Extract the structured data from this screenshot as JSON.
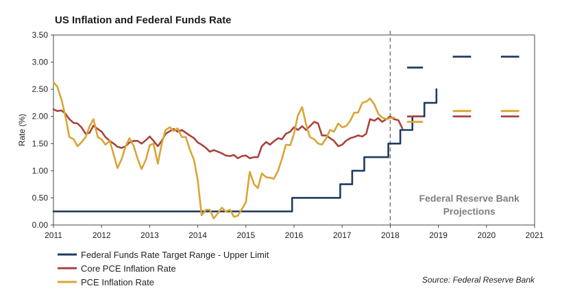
{
  "chart_data": {
    "type": "line",
    "title": "US Inflation and Federal Funds Rate",
    "ylabel": "Rate (%)",
    "xlabel": "",
    "xlim": [
      2011,
      2021
    ],
    "ylim": [
      0,
      3.5
    ],
    "x_ticks": [
      "2011",
      "2012",
      "2013",
      "2014",
      "2015",
      "2016",
      "2017",
      "2018",
      "2019",
      "2020",
      "2021"
    ],
    "y_ticks": [
      "0.00",
      "0.50",
      "1.00",
      "1.50",
      "2.00",
      "2.50",
      "3.00",
      "3.50"
    ],
    "grid": false,
    "legend_position": "bottom-left",
    "projection_divider_x": 2018,
    "projection_label": [
      "Federal Reserve Bank",
      "Projections"
    ],
    "source": "Source: Federal Reserve Bank",
    "series": [
      {
        "name": "Federal Funds Rate Target Range - Upper Limit",
        "color": "#1f3a5f",
        "style": "step",
        "points": [
          [
            2011,
            0.25
          ],
          [
            2015.96,
            0.25
          ],
          [
            2015.96,
            0.5
          ],
          [
            2016.96,
            0.5
          ],
          [
            2016.96,
            0.75
          ],
          [
            2017.21,
            0.75
          ],
          [
            2017.21,
            1.0
          ],
          [
            2017.46,
            1.0
          ],
          [
            2017.46,
            1.25
          ],
          [
            2017.96,
            1.25
          ],
          [
            2017.96,
            1.5
          ],
          [
            2018.21,
            1.5
          ],
          [
            2018.21,
            1.75
          ],
          [
            2018.46,
            1.75
          ],
          [
            2018.46,
            2.0
          ],
          [
            2018.71,
            2.0
          ],
          [
            2018.71,
            2.25
          ],
          [
            2018.96,
            2.25
          ],
          [
            2018.96,
            2.5
          ]
        ]
      },
      {
        "name": "Core PCE Inflation Rate",
        "color": "#a8423c",
        "style": "line",
        "points": [
          [
            2011,
            2.13
          ],
          [
            2011.08,
            2.1
          ],
          [
            2011.17,
            2.11
          ],
          [
            2011.25,
            2.05
          ],
          [
            2011.33,
            1.95
          ],
          [
            2011.42,
            1.88
          ],
          [
            2011.5,
            1.87
          ],
          [
            2011.58,
            1.8
          ],
          [
            2011.67,
            1.68
          ],
          [
            2011.75,
            1.7
          ],
          [
            2011.83,
            1.83
          ],
          [
            2011.92,
            1.77
          ],
          [
            2012,
            1.72
          ],
          [
            2012.08,
            1.62
          ],
          [
            2012.17,
            1.55
          ],
          [
            2012.25,
            1.5
          ],
          [
            2012.33,
            1.44
          ],
          [
            2012.42,
            1.42
          ],
          [
            2012.5,
            1.45
          ],
          [
            2012.58,
            1.52
          ],
          [
            2012.67,
            1.55
          ],
          [
            2012.75,
            1.55
          ],
          [
            2012.83,
            1.5
          ],
          [
            2012.92,
            1.56
          ],
          [
            2013,
            1.63
          ],
          [
            2013.08,
            1.55
          ],
          [
            2013.17,
            1.45
          ],
          [
            2013.25,
            1.55
          ],
          [
            2013.33,
            1.68
          ],
          [
            2013.42,
            1.73
          ],
          [
            2013.5,
            1.77
          ],
          [
            2013.58,
            1.72
          ],
          [
            2013.67,
            1.75
          ],
          [
            2013.75,
            1.7
          ],
          [
            2013.83,
            1.65
          ],
          [
            2013.92,
            1.6
          ],
          [
            2014,
            1.52
          ],
          [
            2014.08,
            1.48
          ],
          [
            2014.17,
            1.42
          ],
          [
            2014.25,
            1.35
          ],
          [
            2014.33,
            1.38
          ],
          [
            2014.42,
            1.35
          ],
          [
            2014.5,
            1.32
          ],
          [
            2014.58,
            1.28
          ],
          [
            2014.67,
            1.27
          ],
          [
            2014.75,
            1.29
          ],
          [
            2014.83,
            1.23
          ],
          [
            2014.92,
            1.27
          ],
          [
            2015,
            1.28
          ],
          [
            2015.08,
            1.23
          ],
          [
            2015.17,
            1.25
          ],
          [
            2015.25,
            1.25
          ],
          [
            2015.33,
            1.45
          ],
          [
            2015.42,
            1.53
          ],
          [
            2015.5,
            1.48
          ],
          [
            2015.58,
            1.54
          ],
          [
            2015.67,
            1.6
          ],
          [
            2015.75,
            1.58
          ],
          [
            2015.83,
            1.68
          ],
          [
            2015.92,
            1.72
          ],
          [
            2016,
            1.8
          ],
          [
            2016.08,
            1.75
          ],
          [
            2016.17,
            1.82
          ],
          [
            2016.25,
            1.75
          ],
          [
            2016.33,
            1.82
          ],
          [
            2016.42,
            1.9
          ],
          [
            2016.5,
            1.87
          ],
          [
            2016.58,
            1.65
          ],
          [
            2016.67,
            1.65
          ],
          [
            2016.75,
            1.6
          ],
          [
            2016.83,
            1.55
          ],
          [
            2016.92,
            1.45
          ],
          [
            2017,
            1.48
          ],
          [
            2017.08,
            1.55
          ],
          [
            2017.17,
            1.6
          ],
          [
            2017.25,
            1.62
          ],
          [
            2017.33,
            1.65
          ],
          [
            2017.42,
            1.63
          ],
          [
            2017.5,
            1.68
          ],
          [
            2017.58,
            1.95
          ],
          [
            2017.67,
            1.92
          ],
          [
            2017.75,
            1.97
          ],
          [
            2017.83,
            1.9
          ],
          [
            2017.92,
            1.95
          ],
          [
            2018,
            2.0
          ],
          [
            2018.08,
            1.95
          ],
          [
            2018.17,
            1.93
          ],
          [
            2018.25,
            1.78
          ]
        ]
      },
      {
        "name": "PCE Inflation Rate",
        "color": "#d9a432",
        "style": "line",
        "points": [
          [
            2011,
            2.63
          ],
          [
            2011.08,
            2.55
          ],
          [
            2011.17,
            2.3
          ],
          [
            2011.25,
            2.0
          ],
          [
            2011.33,
            1.62
          ],
          [
            2011.42,
            1.58
          ],
          [
            2011.5,
            1.45
          ],
          [
            2011.58,
            1.52
          ],
          [
            2011.67,
            1.62
          ],
          [
            2011.75,
            1.82
          ],
          [
            2011.83,
            1.95
          ],
          [
            2011.92,
            1.62
          ],
          [
            2012,
            1.58
          ],
          [
            2012.08,
            1.48
          ],
          [
            2012.17,
            1.55
          ],
          [
            2012.25,
            1.3
          ],
          [
            2012.33,
            1.05
          ],
          [
            2012.42,
            1.22
          ],
          [
            2012.5,
            1.45
          ],
          [
            2012.58,
            1.6
          ],
          [
            2012.67,
            1.45
          ],
          [
            2012.75,
            1.22
          ],
          [
            2012.83,
            1.03
          ],
          [
            2012.92,
            1.2
          ],
          [
            2013,
            1.47
          ],
          [
            2013.08,
            1.5
          ],
          [
            2013.17,
            1.13
          ],
          [
            2013.25,
            1.5
          ],
          [
            2013.33,
            1.75
          ],
          [
            2013.42,
            1.8
          ],
          [
            2013.5,
            1.73
          ],
          [
            2013.58,
            1.78
          ],
          [
            2013.67,
            1.62
          ],
          [
            2013.75,
            1.62
          ],
          [
            2013.83,
            1.4
          ],
          [
            2013.92,
            1.2
          ],
          [
            2014,
            0.82
          ],
          [
            2014.08,
            0.18
          ],
          [
            2014.17,
            0.28
          ],
          [
            2014.25,
            0.28
          ],
          [
            2014.33,
            0.12
          ],
          [
            2014.42,
            0.22
          ],
          [
            2014.5,
            0.32
          ],
          [
            2014.58,
            0.25
          ],
          [
            2014.67,
            0.28
          ],
          [
            2014.75,
            0.15
          ],
          [
            2014.83,
            0.17
          ],
          [
            2014.92,
            0.3
          ],
          [
            2015,
            0.42
          ],
          [
            2015.08,
            0.98
          ],
          [
            2015.17,
            0.75
          ],
          [
            2015.25,
            0.68
          ],
          [
            2015.33,
            0.95
          ],
          [
            2015.42,
            0.88
          ],
          [
            2015.5,
            0.87
          ],
          [
            2015.58,
            0.85
          ],
          [
            2015.67,
            1.0
          ],
          [
            2015.75,
            1.22
          ],
          [
            2015.83,
            1.48
          ],
          [
            2015.92,
            1.47
          ],
          [
            2016,
            1.68
          ],
          [
            2016.08,
            2.02
          ],
          [
            2016.17,
            2.17
          ],
          [
            2016.25,
            1.85
          ],
          [
            2016.33,
            1.62
          ],
          [
            2016.42,
            1.58
          ],
          [
            2016.5,
            1.5
          ],
          [
            2016.58,
            1.48
          ],
          [
            2016.67,
            1.6
          ],
          [
            2016.75,
            1.75
          ],
          [
            2016.83,
            1.72
          ],
          [
            2016.92,
            1.87
          ],
          [
            2017,
            1.8
          ],
          [
            2017.08,
            1.82
          ],
          [
            2017.17,
            1.92
          ],
          [
            2017.25,
            2.07
          ],
          [
            2017.33,
            2.07
          ],
          [
            2017.42,
            2.25
          ],
          [
            2017.5,
            2.27
          ],
          [
            2017.58,
            2.33
          ],
          [
            2017.67,
            2.22
          ],
          [
            2017.75,
            2.05
          ],
          [
            2017.83,
            1.98
          ],
          [
            2017.92,
            1.95
          ],
          [
            2018,
            1.97
          ],
          [
            2018.08,
            1.98
          ]
        ]
      }
    ],
    "projections": [
      {
        "series": "Federal Funds Rate Target Range - Upper Limit",
        "color": "#1f3a5f",
        "segments": [
          [
            2018.35,
            2018.68,
            2.9
          ],
          [
            2019.3,
            2019.68,
            3.1
          ],
          [
            2020.3,
            2020.68,
            3.1
          ]
        ]
      },
      {
        "series": "Core PCE Inflation Rate",
        "color": "#a8423c",
        "segments": [
          [
            2018.35,
            2018.68,
            2.0
          ],
          [
            2019.3,
            2019.68,
            2.0
          ],
          [
            2020.3,
            2020.68,
            2.0
          ]
        ]
      },
      {
        "series": "PCE Inflation Rate",
        "color": "#d9a432",
        "segments": [
          [
            2018.35,
            2018.68,
            1.9
          ],
          [
            2019.3,
            2019.68,
            2.1
          ],
          [
            2020.3,
            2020.68,
            2.1
          ]
        ]
      }
    ]
  }
}
